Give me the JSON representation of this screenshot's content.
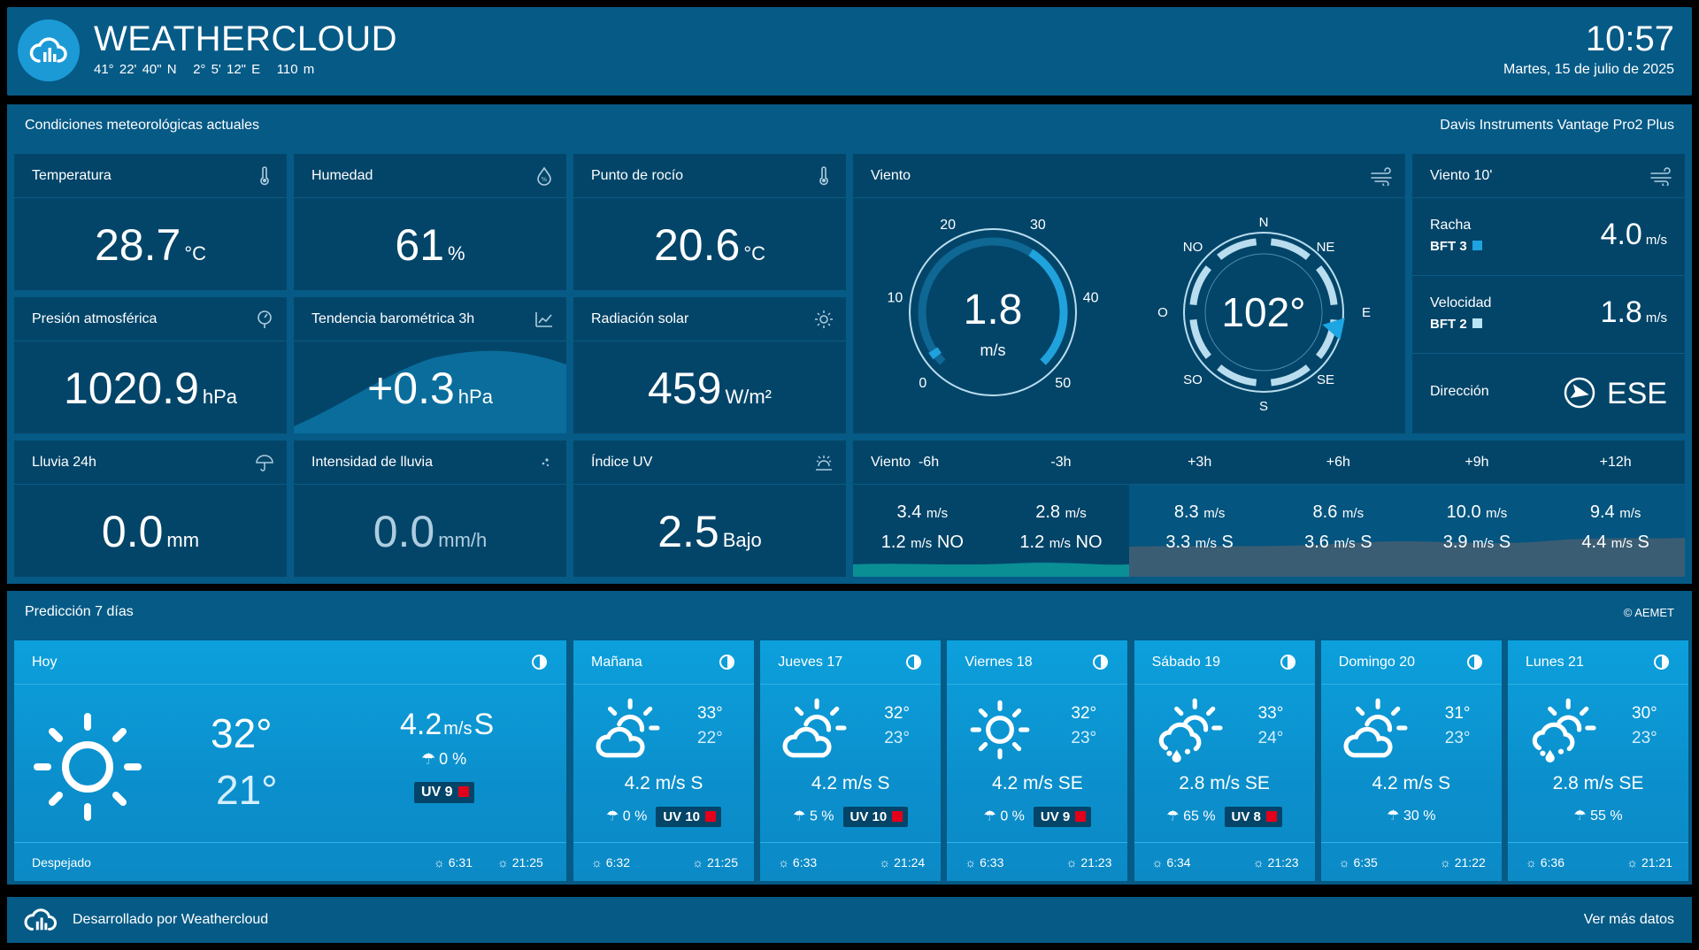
{
  "header": {
    "brand": "WEATHERCLOUD",
    "lat": "41° 22' 40\" N",
    "lon": "2° 5' 12\" E",
    "alt": "110 m",
    "time": "10:57",
    "date": "Martes, 15 de julio de 2025"
  },
  "conditions": {
    "title": "Condiciones meteorológicas actuales",
    "station": "Davis Instruments Vantage Pro2 Plus"
  },
  "tiles": {
    "temperature": {
      "label": "Temperatura",
      "value": "28.7",
      "unit": "°C"
    },
    "humidity": {
      "label": "Humedad",
      "value": "61",
      "unit": "%"
    },
    "dewpoint": {
      "label": "Punto de rocío",
      "value": "20.6",
      "unit": "°C"
    },
    "pressure": {
      "label": "Presión atmosférica",
      "value": "1020.9",
      "unit": "hPa"
    },
    "trend": {
      "label": "Tendencia barométrica 3h",
      "value": "+0.3",
      "unit": "hPa"
    },
    "solar": {
      "label": "Radiación solar",
      "value": "459",
      "unit": "W/m²"
    },
    "rain": {
      "label": "Lluvia 24h",
      "value": "0.0",
      "unit": "mm"
    },
    "rainrate": {
      "label": "Intensidad de lluvia",
      "value": "0.0",
      "unit": "mm/h"
    },
    "uv": {
      "label": "Índice UV",
      "value": "2.5",
      "unit": "Bajo"
    }
  },
  "wind": {
    "label": "Viento",
    "speed": "1.8",
    "speed_unit": "m/s",
    "speed_value": 1.8,
    "scale": [
      "0",
      "10",
      "20",
      "30",
      "40",
      "50"
    ],
    "direction": "102°",
    "direction_deg": 102,
    "compass": {
      "n": "N",
      "ne": "NE",
      "e": "E",
      "se": "SE",
      "s": "S",
      "so": "SO",
      "o": "O",
      "no": "NO"
    }
  },
  "wind10": {
    "label": "Viento 10'",
    "gust_label": "Racha",
    "gust_bft": "BFT 3",
    "gust_value": "4.0",
    "gust_unit": "m/s",
    "gust_color": "#1fa3e0",
    "speed_label": "Velocidad",
    "speed_bft": "BFT 2",
    "speed_value": "1.8",
    "speed_unit": "m/s",
    "speed_color": "#b9e4f5",
    "dir_label": "Dirección",
    "dir_value": "ESE"
  },
  "windfc": {
    "label": "Viento",
    "cols": [
      {
        "h": "-6h",
        "top": "3.4",
        "bot": "1.2",
        "bdir": "NO"
      },
      {
        "h": "-3h",
        "top": "2.8",
        "bot": "1.2",
        "bdir": "NO"
      },
      {
        "h": "+3h",
        "top": "8.3",
        "bot": "3.3",
        "bdir": "S"
      },
      {
        "h": "+6h",
        "top": "8.6",
        "bot": "3.6",
        "bdir": "S"
      },
      {
        "h": "+9h",
        "top": "10.0",
        "bot": "3.9",
        "bdir": "S"
      },
      {
        "h": "+12h",
        "top": "9.4",
        "bot": "4.4",
        "bdir": "S"
      }
    ],
    "unit": "m/s"
  },
  "forecast": {
    "title": "Predicción 7 días",
    "source": "© AEMET",
    "today": {
      "label": "Hoy",
      "max": "32°",
      "min": "21°",
      "wind": "4.2",
      "wind_unit": "m/s",
      "wind_dir": "S",
      "rain": "0 %",
      "uv": "UV 9",
      "desc": "Despejado",
      "sunrise": "6:31",
      "sunset": "21:25"
    },
    "days": [
      {
        "label": "Mañana",
        "max": "33°",
        "min": "22°",
        "wind": "4.2 m/s S",
        "rain": "0 %",
        "uv": "UV 10",
        "sunrise": "6:32",
        "sunset": "21:25",
        "icon": "sun-cloud-icon"
      },
      {
        "label": "Jueves 17",
        "max": "32°",
        "min": "23°",
        "wind": "4.2 m/s S",
        "rain": "5 %",
        "uv": "UV 10",
        "sunrise": "6:33",
        "sunset": "21:24",
        "icon": "sun-cloud-icon"
      },
      {
        "label": "Viernes 18",
        "max": "32°",
        "min": "23°",
        "wind": "4.2 m/s SE",
        "rain": "0 %",
        "uv": "UV 9",
        "sunrise": "6:33",
        "sunset": "21:23",
        "icon": "sun-icon"
      },
      {
        "label": "Sábado 19",
        "max": "33°",
        "min": "24°",
        "wind": "2.8 m/s SE",
        "rain": "65 %",
        "uv": "UV 8",
        "sunrise": "6:34",
        "sunset": "21:23",
        "icon": "sun-rain-icon"
      },
      {
        "label": "Domingo 20",
        "max": "31°",
        "min": "23°",
        "wind": "4.2 m/s S",
        "rain": "30 %",
        "uv": "",
        "sunrise": "6:35",
        "sunset": "21:22",
        "icon": "sun-cloud-icon"
      },
      {
        "label": "Lunes 21",
        "max": "30°",
        "min": "23°",
        "wind": "2.8 m/s SE",
        "rain": "55 %",
        "uv": "",
        "sunrise": "6:36",
        "sunset": "21:21",
        "icon": "sun-rain-icon"
      }
    ]
  },
  "footer": {
    "credit": "Desarrollado por Weathercloud",
    "more": "Ver más datos"
  }
}
